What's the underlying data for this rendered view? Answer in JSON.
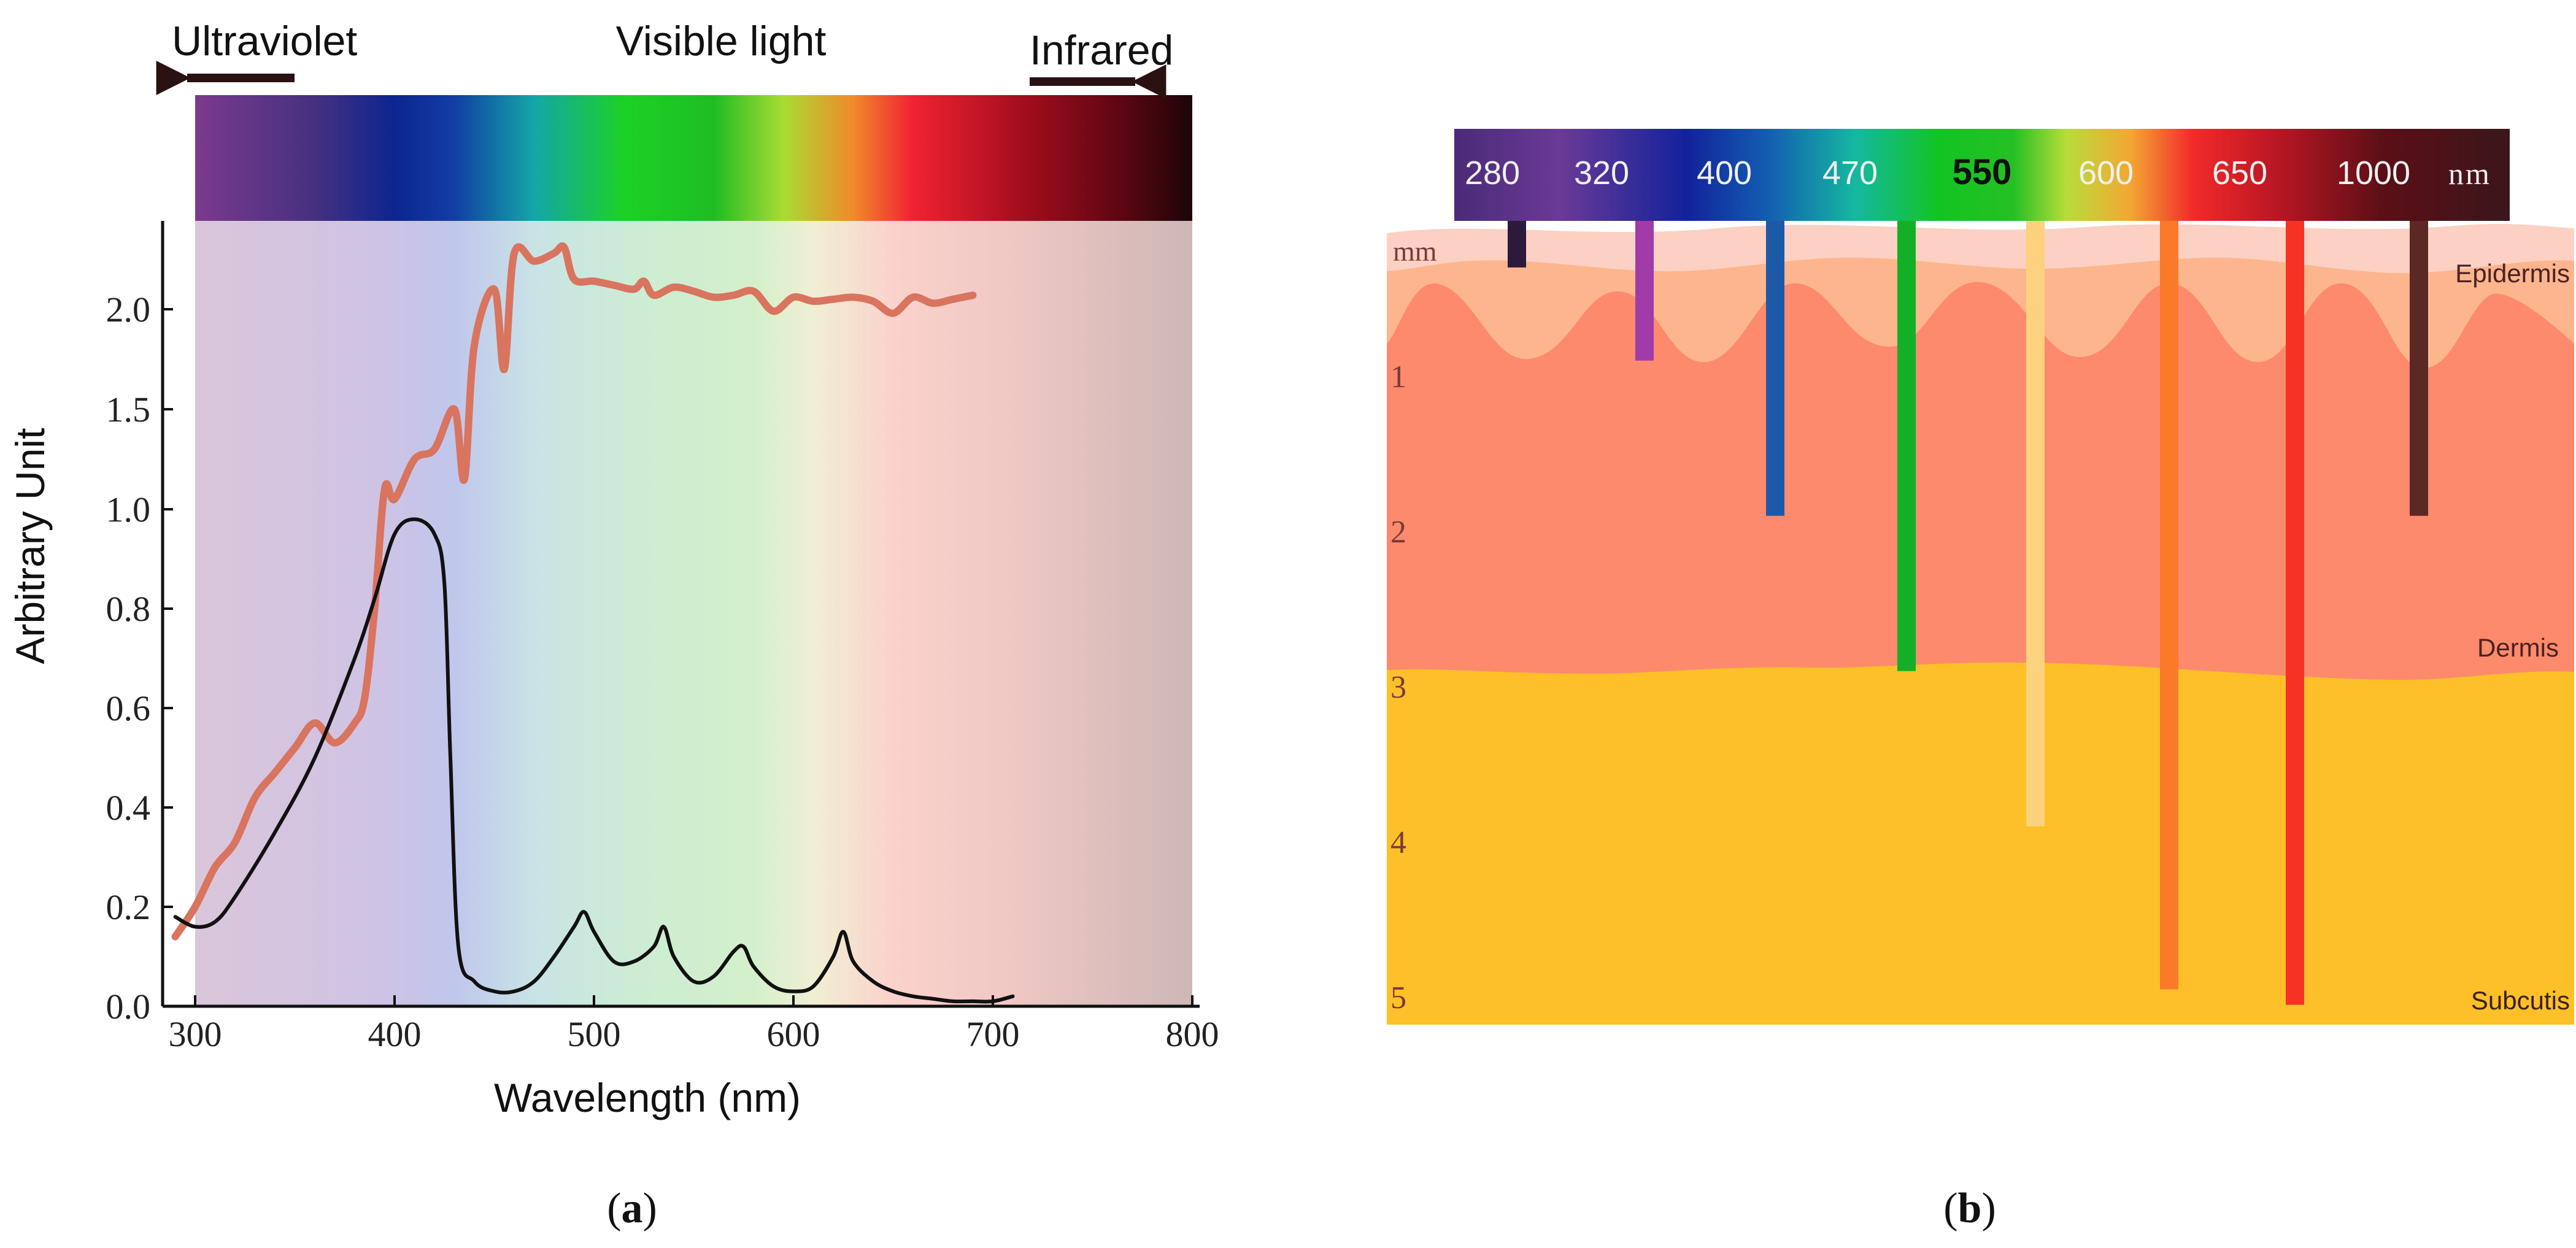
{
  "chart_data": [
    {
      "type": "line",
      "panel": "a",
      "caption": "a",
      "title": "",
      "xlabel": "Wavelength (nm)",
      "ylabel": "Arbitrary Unit",
      "xlim": [
        290,
        800
      ],
      "ylim": [
        0.0,
        2.4
      ],
      "xticks": [
        "300",
        "400",
        "500",
        "600",
        "700",
        "800"
      ],
      "yticks": [
        "0.0",
        "0.2",
        "0.4",
        "0.6",
        "0.8",
        "1.0",
        "1.5",
        "2.0"
      ],
      "grid": false,
      "spectrum_labels": {
        "uv": "Ultraviolet",
        "visible": "Visible light",
        "ir": "Infrared"
      },
      "series": [
        {
          "name": "orange curve",
          "color": "#d9745f",
          "x": [
            290,
            300,
            310,
            320,
            330,
            340,
            350,
            360,
            370,
            380,
            385,
            390,
            395,
            400,
            410,
            420,
            430,
            435,
            440,
            450,
            455,
            460,
            470,
            480,
            485,
            490,
            500,
            510,
            520,
            525,
            530,
            540,
            550,
            560,
            570,
            580,
            590,
            600,
            610,
            620,
            630,
            640,
            650,
            660,
            670,
            680,
            690
          ],
          "values": [
            0.14,
            0.2,
            0.28,
            0.33,
            0.42,
            0.47,
            0.52,
            0.57,
            0.53,
            0.57,
            0.62,
            0.8,
            1.1,
            1.05,
            1.25,
            1.3,
            1.5,
            1.15,
            1.82,
            2.1,
            1.7,
            2.28,
            2.24,
            2.28,
            2.31,
            2.15,
            2.14,
            2.12,
            2.1,
            2.14,
            2.07,
            2.11,
            2.09,
            2.06,
            2.07,
            2.09,
            1.99,
            2.06,
            2.04,
            2.05,
            2.06,
            2.04,
            1.98,
            2.06,
            2.03,
            2.05,
            2.07
          ]
        },
        {
          "name": "black curve",
          "color": "#111111",
          "x": [
            290,
            300,
            310,
            320,
            340,
            360,
            380,
            390,
            400,
            410,
            420,
            425,
            428,
            432,
            440,
            450,
            460,
            470,
            480,
            490,
            495,
            500,
            510,
            520,
            530,
            535,
            540,
            550,
            560,
            570,
            575,
            580,
            590,
            600,
            610,
            620,
            625,
            630,
            640,
            650,
            660,
            670,
            680,
            690,
            700,
            710
          ],
          "values": [
            0.18,
            0.16,
            0.17,
            0.22,
            0.35,
            0.5,
            0.7,
            0.82,
            0.95,
            0.98,
            0.95,
            0.85,
            0.5,
            0.12,
            0.05,
            0.03,
            0.03,
            0.05,
            0.1,
            0.16,
            0.19,
            0.15,
            0.09,
            0.09,
            0.12,
            0.16,
            0.1,
            0.05,
            0.06,
            0.11,
            0.12,
            0.08,
            0.04,
            0.03,
            0.04,
            0.1,
            0.15,
            0.09,
            0.05,
            0.03,
            0.02,
            0.015,
            0.01,
            0.01,
            0.01,
            0.02
          ]
        }
      ]
    },
    {
      "type": "bar",
      "panel": "b",
      "caption": "b",
      "title": "",
      "description_labels": {
        "mm": "mm",
        "epidermis": "Epidermis",
        "dermis": "Dermis",
        "subcutis": "Subcutis",
        "nm": "nm"
      },
      "depth_ticks": [
        "1",
        "2",
        "3",
        "4",
        "5"
      ],
      "ylim_mm": [
        0,
        5
      ],
      "categories": [
        "280",
        "320",
        "400",
        "470",
        "550",
        "600",
        "650",
        "1000"
      ],
      "values_mm": [
        0.3,
        0.9,
        1.9,
        2.9,
        3.9,
        4.95,
        5.05,
        1.9
      ],
      "bar_colors": [
        "#2b1a3c",
        "#a03ba8",
        "#1c5aa8",
        "#13b027",
        "#fcd27e",
        "#fa7a2a",
        "#f63323",
        "#5c2823"
      ],
      "bold_category": "550",
      "dark_label_category": "550"
    }
  ]
}
